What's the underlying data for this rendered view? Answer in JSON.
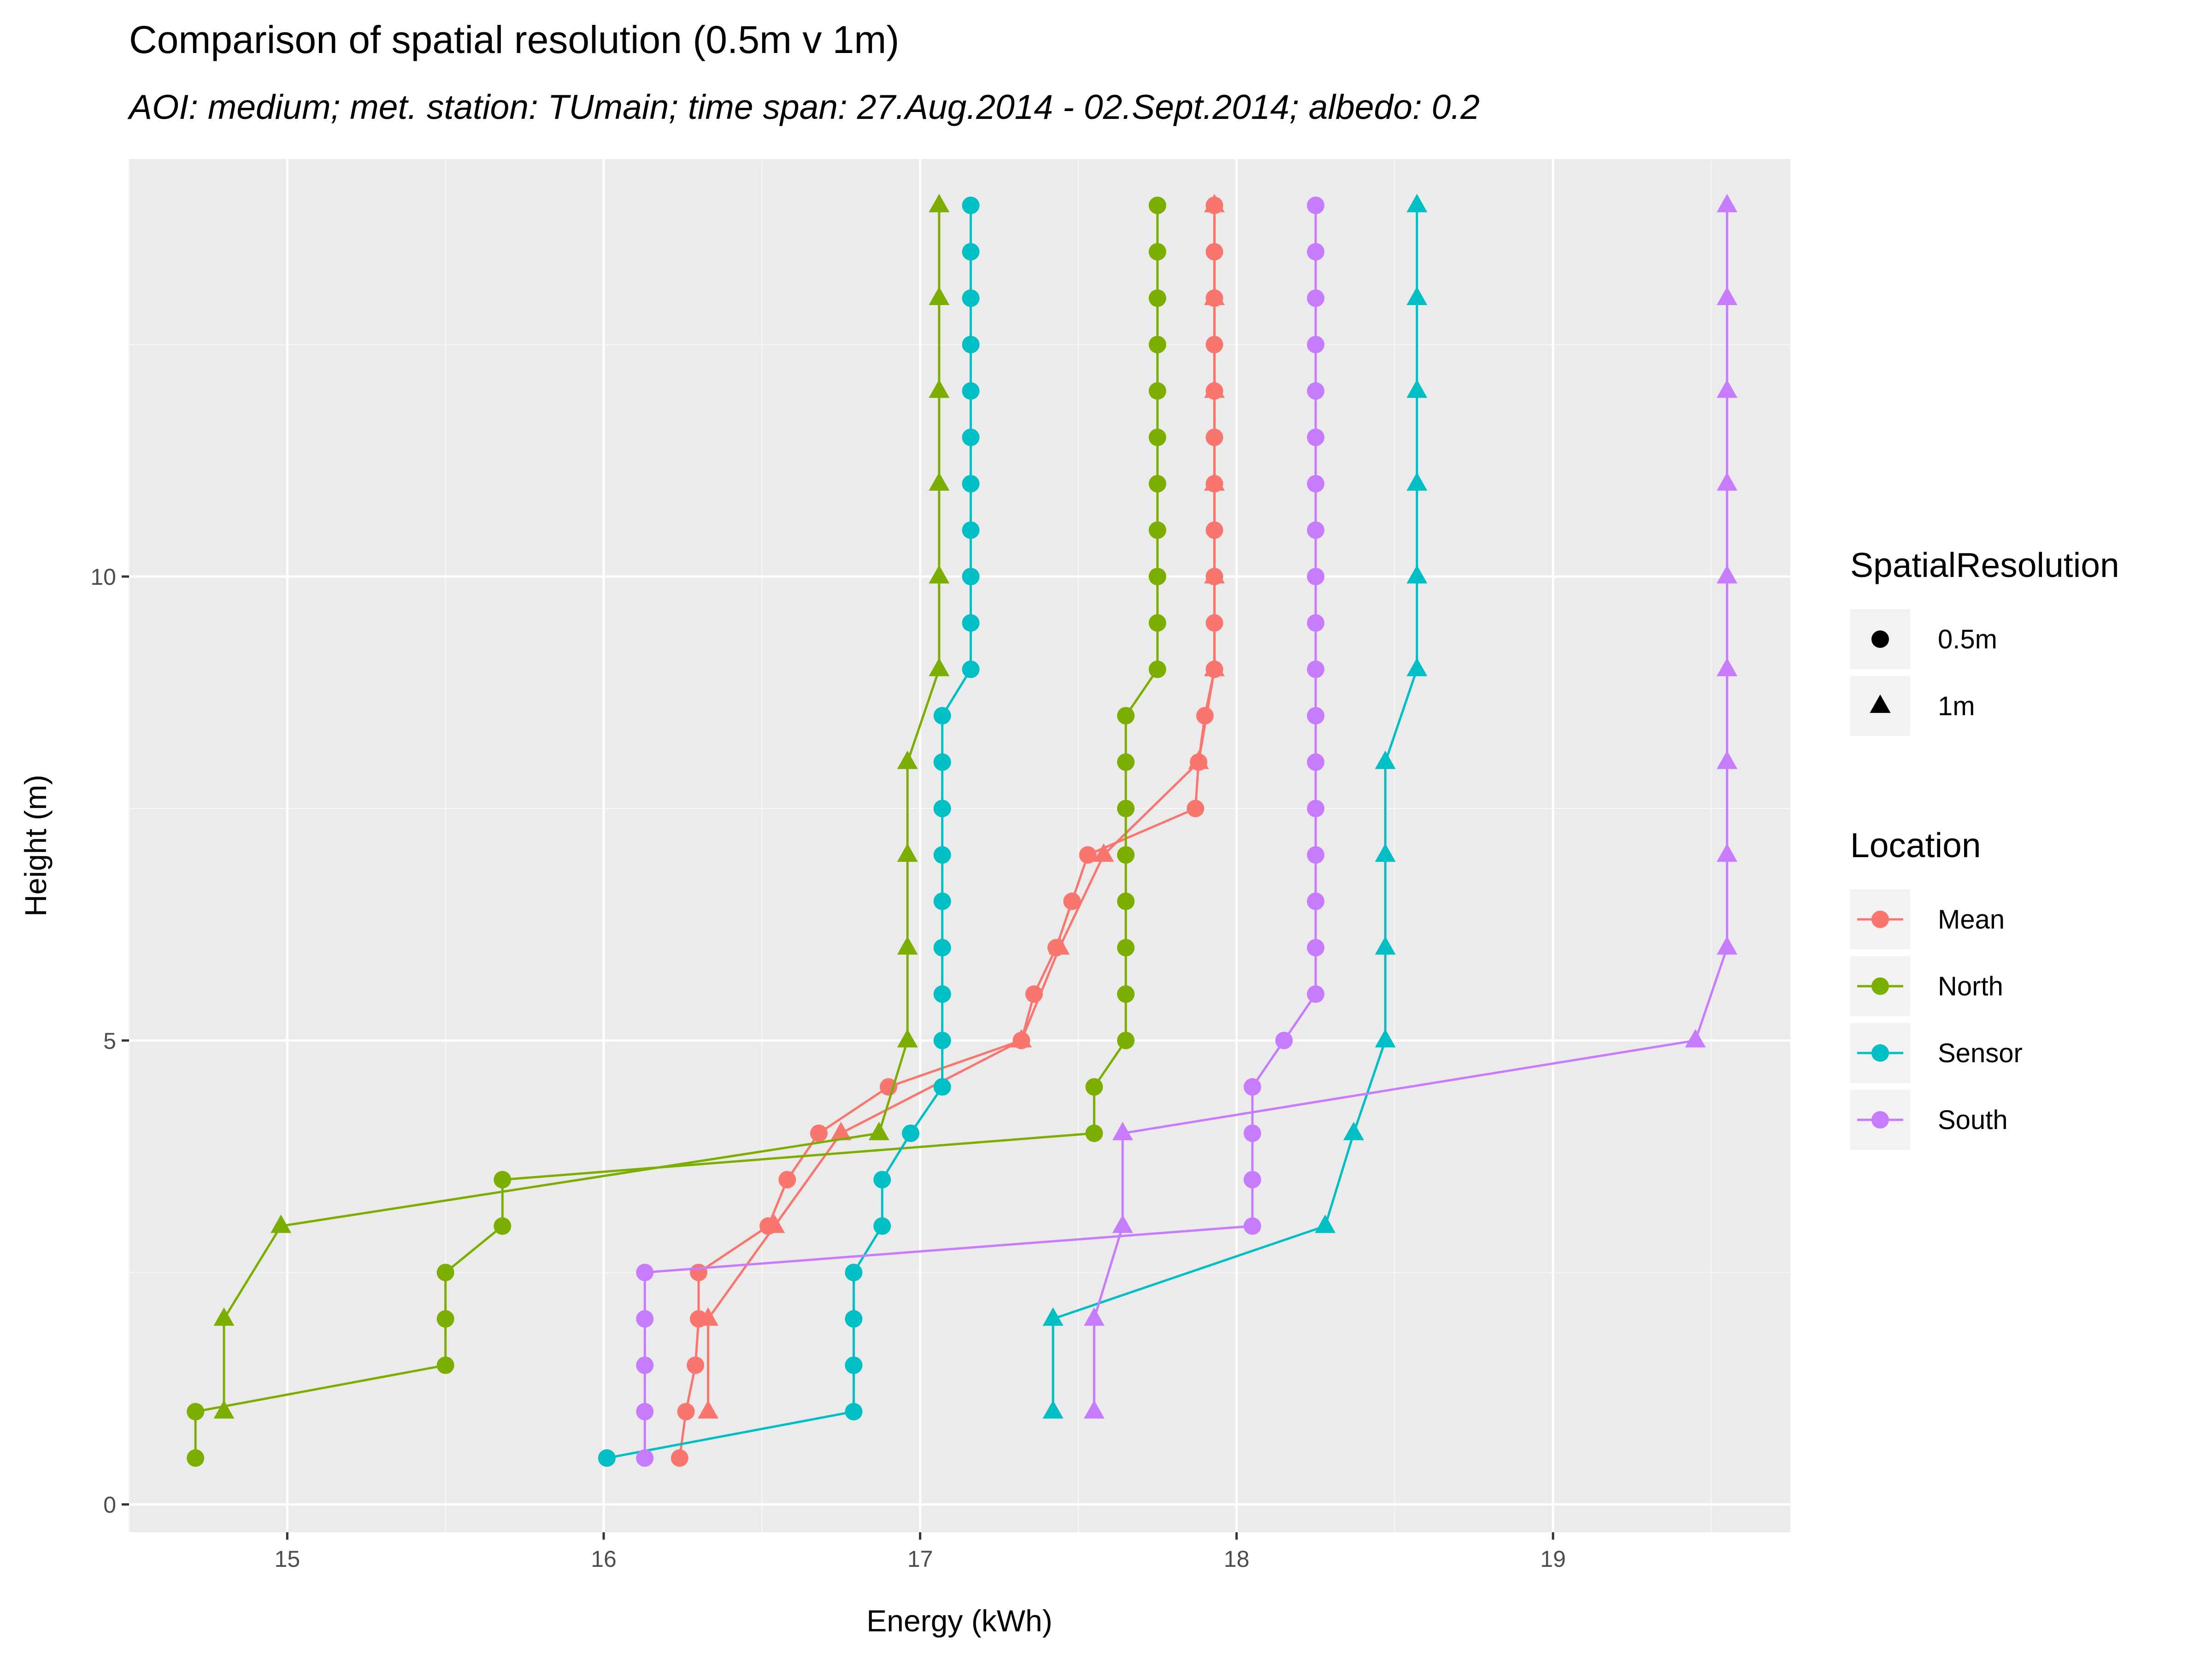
{
  "chart_data": {
    "type": "line",
    "title": "Comparison of spatial resolution (0.5m v 1m)",
    "subtitle": "AOI: medium; met. station: TUmain; time span: 27.Aug.2014 - 02.Sept.2014; albedo: 0.2",
    "xlabel": "Energy (kWh)",
    "ylabel": "Height (m)",
    "xlim": [
      14.5,
      19.75
    ],
    "ylim": [
      -0.3,
      14.5
    ],
    "x_ticks": [
      15,
      16,
      17,
      18,
      19
    ],
    "y_ticks": [
      0,
      5,
      10
    ],
    "grid": true,
    "legend_position": "right",
    "legend_shape": {
      "title": "SpatialResolution",
      "entries": [
        {
          "label": "0.5m",
          "shape": "circle"
        },
        {
          "label": "1m",
          "shape": "triangle"
        }
      ]
    },
    "legend_color": {
      "title": "Location",
      "entries": [
        {
          "label": "Mean",
          "color": "#F8766D"
        },
        {
          "label": "North",
          "color": "#7CAE00"
        },
        {
          "label": "Sensor",
          "color": "#00BFC4"
        },
        {
          "label": "South",
          "color": "#C77CFF"
        }
      ]
    },
    "series": [
      {
        "location": "Mean",
        "resolution": "0.5m",
        "color": "#F8766D",
        "shape": "circle",
        "points": [
          [
            16.24,
            0.5
          ],
          [
            16.26,
            1
          ],
          [
            16.29,
            1.5
          ],
          [
            16.3,
            2
          ],
          [
            16.3,
            2.5
          ],
          [
            16.52,
            3
          ],
          [
            16.58,
            3.5
          ],
          [
            16.68,
            4
          ],
          [
            16.9,
            4.5
          ],
          [
            17.32,
            5
          ],
          [
            17.36,
            5.5
          ],
          [
            17.43,
            6
          ],
          [
            17.48,
            6.5
          ],
          [
            17.53,
            7
          ],
          [
            17.87,
            7.5
          ],
          [
            17.88,
            8
          ],
          [
            17.9,
            8.5
          ],
          [
            17.93,
            9
          ],
          [
            17.93,
            9.5
          ],
          [
            17.93,
            10
          ],
          [
            17.93,
            10.5
          ],
          [
            17.93,
            11
          ],
          [
            17.93,
            11.5
          ],
          [
            17.93,
            12
          ],
          [
            17.93,
            12.5
          ],
          [
            17.93,
            13
          ],
          [
            17.93,
            13.5
          ],
          [
            17.93,
            14
          ]
        ]
      },
      {
        "location": "Mean",
        "resolution": "1m",
        "color": "#F8766D",
        "shape": "triangle",
        "points": [
          [
            16.33,
            1
          ],
          [
            16.33,
            2
          ],
          [
            16.54,
            3
          ],
          [
            16.75,
            4
          ],
          [
            17.32,
            5
          ],
          [
            17.44,
            6
          ],
          [
            17.58,
            7
          ],
          [
            17.88,
            8
          ],
          [
            17.93,
            9
          ],
          [
            17.93,
            10
          ],
          [
            17.93,
            11
          ],
          [
            17.93,
            12
          ],
          [
            17.93,
            13
          ],
          [
            17.93,
            14
          ]
        ]
      },
      {
        "location": "North",
        "resolution": "0.5m",
        "color": "#7CAE00",
        "shape": "circle",
        "points": [
          [
            14.71,
            0.5
          ],
          [
            14.71,
            1
          ],
          [
            15.5,
            1.5
          ],
          [
            15.5,
            2
          ],
          [
            15.5,
            2.5
          ],
          [
            15.68,
            3
          ],
          [
            15.68,
            3.5
          ],
          [
            17.55,
            4
          ],
          [
            17.55,
            4.5
          ],
          [
            17.65,
            5
          ],
          [
            17.65,
            5.5
          ],
          [
            17.65,
            6
          ],
          [
            17.65,
            6.5
          ],
          [
            17.65,
            7
          ],
          [
            17.65,
            7.5
          ],
          [
            17.65,
            8
          ],
          [
            17.65,
            8.5
          ],
          [
            17.75,
            9
          ],
          [
            17.75,
            9.5
          ],
          [
            17.75,
            10
          ],
          [
            17.75,
            10.5
          ],
          [
            17.75,
            11
          ],
          [
            17.75,
            11.5
          ],
          [
            17.75,
            12
          ],
          [
            17.75,
            12.5
          ],
          [
            17.75,
            13
          ],
          [
            17.75,
            13.5
          ],
          [
            17.75,
            14
          ]
        ]
      },
      {
        "location": "North",
        "resolution": "1m",
        "color": "#7CAE00",
        "shape": "triangle",
        "points": [
          [
            14.8,
            1
          ],
          [
            14.8,
            2
          ],
          [
            14.98,
            3
          ],
          [
            16.87,
            4
          ],
          [
            16.96,
            5
          ],
          [
            16.96,
            6
          ],
          [
            16.96,
            7
          ],
          [
            16.96,
            8
          ],
          [
            17.06,
            9
          ],
          [
            17.06,
            10
          ],
          [
            17.06,
            11
          ],
          [
            17.06,
            12
          ],
          [
            17.06,
            13
          ],
          [
            17.06,
            14
          ]
        ]
      },
      {
        "location": "Sensor",
        "resolution": "0.5m",
        "color": "#00BFC4",
        "shape": "circle",
        "points": [
          [
            16.01,
            0.5
          ],
          [
            16.79,
            1
          ],
          [
            16.79,
            1.5
          ],
          [
            16.79,
            2
          ],
          [
            16.79,
            2.5
          ],
          [
            16.88,
            3
          ],
          [
            16.88,
            3.5
          ],
          [
            16.97,
            4
          ],
          [
            17.07,
            4.5
          ],
          [
            17.07,
            5
          ],
          [
            17.07,
            5.5
          ],
          [
            17.07,
            6
          ],
          [
            17.07,
            6.5
          ],
          [
            17.07,
            7
          ],
          [
            17.07,
            7.5
          ],
          [
            17.07,
            8
          ],
          [
            17.07,
            8.5
          ],
          [
            17.16,
            9
          ],
          [
            17.16,
            9.5
          ],
          [
            17.16,
            10
          ],
          [
            17.16,
            10.5
          ],
          [
            17.16,
            11
          ],
          [
            17.16,
            11.5
          ],
          [
            17.16,
            12
          ],
          [
            17.16,
            12.5
          ],
          [
            17.16,
            13
          ],
          [
            17.16,
            13.5
          ],
          [
            17.16,
            14
          ]
        ]
      },
      {
        "location": "Sensor",
        "resolution": "1m",
        "color": "#00BFC4",
        "shape": "triangle",
        "points": [
          [
            17.42,
            1
          ],
          [
            17.42,
            2
          ],
          [
            18.28,
            3
          ],
          [
            18.37,
            4
          ],
          [
            18.47,
            5
          ],
          [
            18.47,
            6
          ],
          [
            18.47,
            7
          ],
          [
            18.47,
            8
          ],
          [
            18.57,
            9
          ],
          [
            18.57,
            10
          ],
          [
            18.57,
            11
          ],
          [
            18.57,
            12
          ],
          [
            18.57,
            13
          ],
          [
            18.57,
            14
          ]
        ]
      },
      {
        "location": "South",
        "resolution": "0.5m",
        "color": "#C77CFF",
        "shape": "circle",
        "points": [
          [
            16.13,
            0.5
          ],
          [
            16.13,
            1
          ],
          [
            16.13,
            1.5
          ],
          [
            16.13,
            2
          ],
          [
            16.13,
            2.5
          ],
          [
            18.05,
            3
          ],
          [
            18.05,
            3.5
          ],
          [
            18.05,
            4
          ],
          [
            18.05,
            4.5
          ],
          [
            18.15,
            5
          ],
          [
            18.25,
            5.5
          ],
          [
            18.25,
            6
          ],
          [
            18.25,
            6.5
          ],
          [
            18.25,
            7
          ],
          [
            18.25,
            7.5
          ],
          [
            18.25,
            8
          ],
          [
            18.25,
            8.5
          ],
          [
            18.25,
            9
          ],
          [
            18.25,
            9.5
          ],
          [
            18.25,
            10
          ],
          [
            18.25,
            10.5
          ],
          [
            18.25,
            11
          ],
          [
            18.25,
            11.5
          ],
          [
            18.25,
            12
          ],
          [
            18.25,
            12.5
          ],
          [
            18.25,
            13
          ],
          [
            18.25,
            13.5
          ],
          [
            18.25,
            14
          ]
        ]
      },
      {
        "location": "South",
        "resolution": "1m",
        "color": "#C77CFF",
        "shape": "triangle",
        "points": [
          [
            17.55,
            1
          ],
          [
            17.55,
            2
          ],
          [
            17.64,
            3
          ],
          [
            17.64,
            4
          ],
          [
            19.45,
            5
          ],
          [
            19.55,
            6
          ],
          [
            19.55,
            7
          ],
          [
            19.55,
            8
          ],
          [
            19.55,
            9
          ],
          [
            19.55,
            10
          ],
          [
            19.55,
            11
          ],
          [
            19.55,
            12
          ],
          [
            19.55,
            13
          ],
          [
            19.55,
            14
          ]
        ]
      }
    ]
  }
}
